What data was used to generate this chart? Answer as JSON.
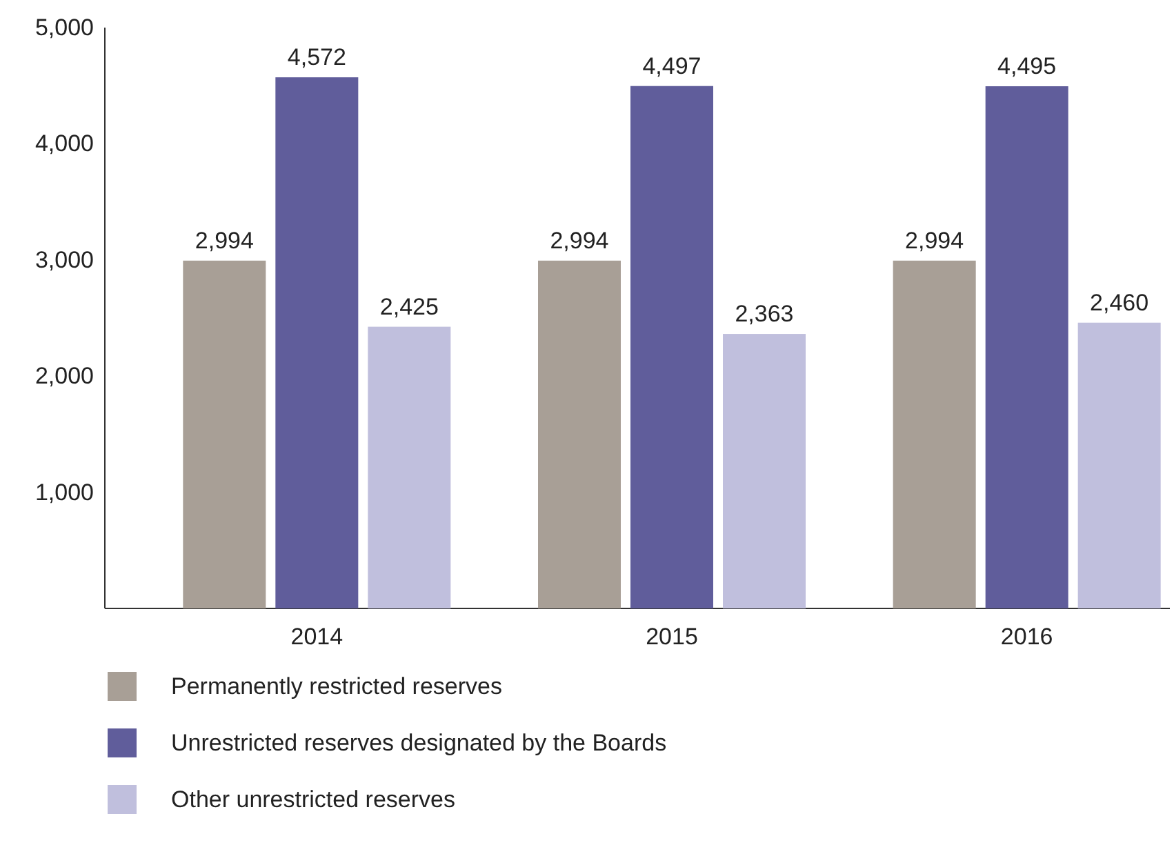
{
  "chart_data": {
    "type": "bar",
    "categories": [
      "2014",
      "2015",
      "2016"
    ],
    "series": [
      {
        "name": "Permanently restricted reserves",
        "color": "#a89f96",
        "values": [
          2994,
          2994,
          2994
        ],
        "value_labels": [
          "2,994",
          "2,994",
          "2,994"
        ]
      },
      {
        "name": "Unrestricted reserves designated by the Boards",
        "color": "#605d9b",
        "values": [
          4572,
          4497,
          4495
        ],
        "value_labels": [
          "4,572",
          "4,497",
          "4,495"
        ]
      },
      {
        "name": "Other unrestricted reserves",
        "color": "#c0bfdd",
        "values": [
          2425,
          2363,
          2460
        ],
        "value_labels": [
          "2,425",
          "2,363",
          "2,460"
        ]
      }
    ],
    "ylim": [
      0,
      5000
    ],
    "yticks": [
      {
        "value": 1000,
        "label": "1,000"
      },
      {
        "value": 2000,
        "label": "2,000"
      },
      {
        "value": 3000,
        "label": "3,000"
      },
      {
        "value": 4000,
        "label": "4,000"
      },
      {
        "value": 5000,
        "label": "5,000"
      }
    ],
    "grid": false,
    "legend": "bottom"
  }
}
